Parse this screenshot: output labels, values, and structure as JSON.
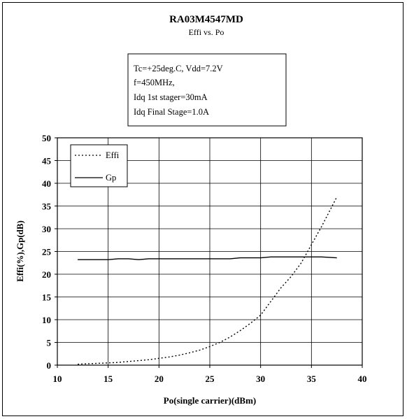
{
  "chart_data": {
    "type": "line",
    "title": "RA03M4547MD",
    "subtitle": "Effi vs. Po",
    "conditions": [
      "Tc=+25deg.C, Vdd=7.2V",
      "f=450MHz,",
      "Idq 1st stager=30mA",
      "Idq Final Stage=1.0A"
    ],
    "xlabel": "Po(single carrier)(dBm)",
    "ylabel": "Effi(%),Gp(dB)",
    "xlim": [
      10,
      40
    ],
    "ylim": [
      0,
      50
    ],
    "xticks": [
      10,
      15,
      20,
      25,
      30,
      35,
      40
    ],
    "yticks": [
      0,
      5,
      10,
      15,
      20,
      25,
      30,
      35,
      40,
      45,
      50
    ],
    "grid": true,
    "legend_position": "top-left",
    "series": [
      {
        "name": "Effi",
        "style": "dotted",
        "x": [
          12,
          13,
          14,
          15,
          16,
          17,
          18,
          19,
          20,
          21,
          22,
          23,
          24,
          25,
          26,
          27,
          28,
          29,
          30,
          31,
          32,
          33,
          34,
          35,
          36,
          37.5
        ],
        "y": [
          0.2,
          0.3,
          0.4,
          0.5,
          0.6,
          0.8,
          1.0,
          1.2,
          1.5,
          1.8,
          2.2,
          2.7,
          3.3,
          4.1,
          5.0,
          6.2,
          7.6,
          9.2,
          11.0,
          14.0,
          17.0,
          19.5,
          22.5,
          26.5,
          30.5,
          37.0
        ]
      },
      {
        "name": "Gp",
        "style": "solid",
        "x": [
          12,
          13,
          14,
          15,
          16,
          17,
          18,
          19,
          20,
          21,
          22,
          23,
          24,
          25,
          26,
          27,
          28,
          29,
          30,
          31,
          32,
          33,
          34,
          35,
          36,
          37.5
        ],
        "y": [
          23.2,
          23.2,
          23.2,
          23.2,
          23.4,
          23.4,
          23.2,
          23.4,
          23.4,
          23.4,
          23.4,
          23.4,
          23.4,
          23.4,
          23.4,
          23.4,
          23.6,
          23.6,
          23.6,
          23.8,
          23.8,
          23.8,
          23.8,
          23.8,
          23.8,
          23.6
        ]
      }
    ]
  }
}
